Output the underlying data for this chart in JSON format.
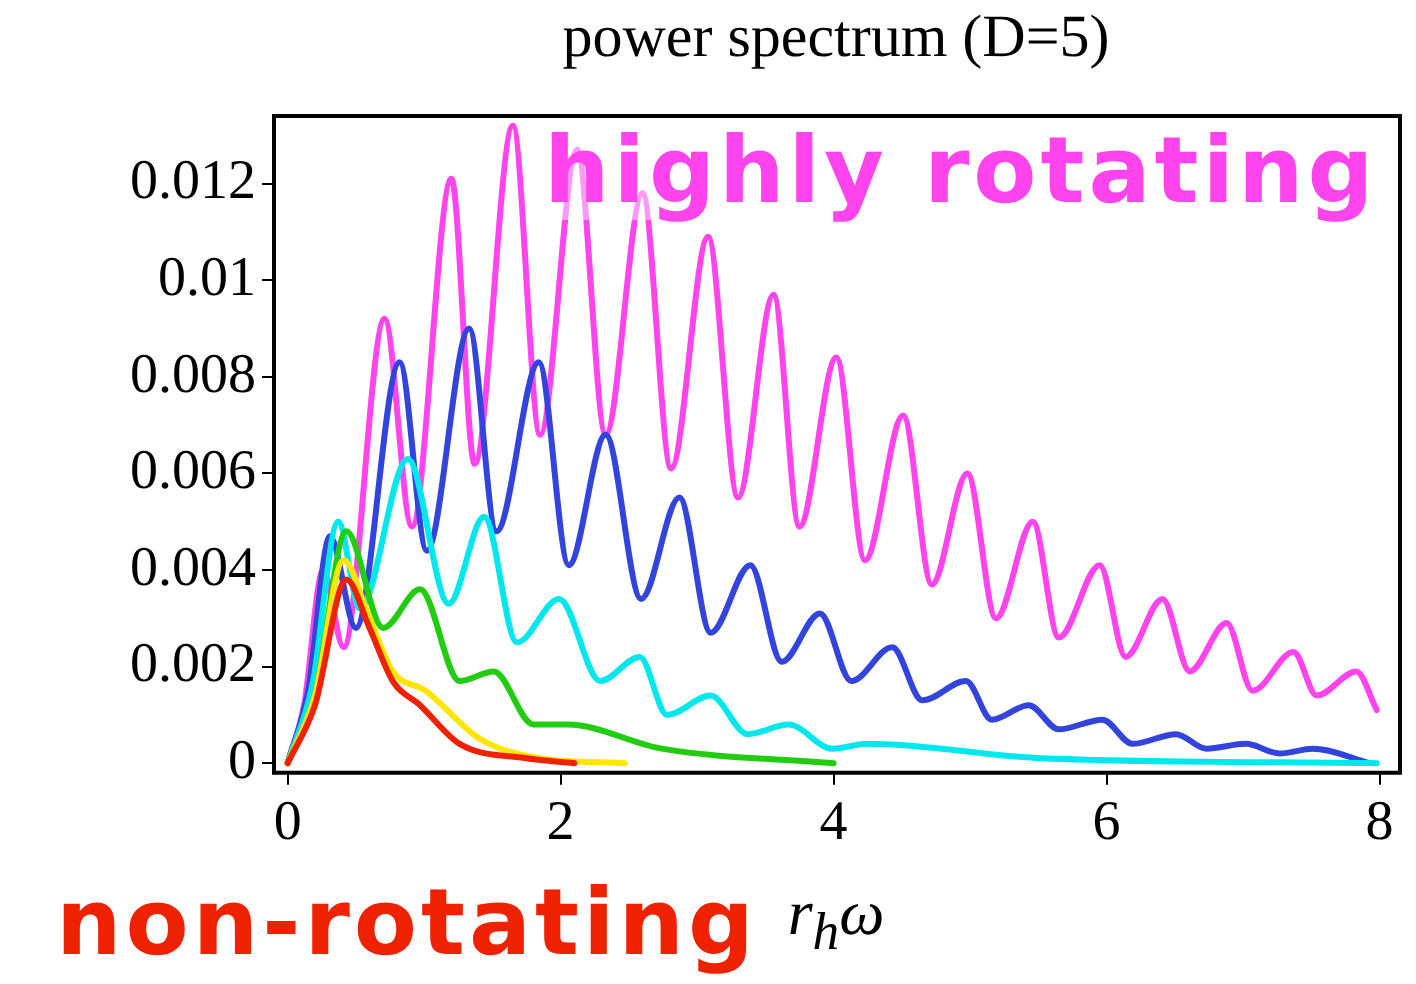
{
  "chart_data": {
    "type": "line",
    "title": "power spectrum (D=5)",
    "xlabel": "r$_{h}$ω",
    "xlim": [
      -0.1,
      8.15
    ],
    "ylim": [
      -0.0002,
      0.0134
    ],
    "xticks": [
      0,
      2,
      4,
      6,
      8
    ],
    "yticks": [
      0,
      0.002,
      0.004,
      0.006,
      0.008,
      0.01,
      0.012
    ],
    "grid": false,
    "legend": false,
    "marker": "none",
    "line_style": "solid",
    "series": [
      {
        "color": "#ee2200",
        "name": "non-rotating",
        "x": [
          0,
          0.2,
          0.43,
          0.6,
          0.77,
          0.97,
          1.26,
          1.75,
          2.1
        ],
        "values": [
          0,
          0.0012,
          0.0038,
          0.0028,
          0.0017,
          0.0012,
          0.0004,
          0.0001,
          0
        ]
      },
      {
        "color": "#ffe600",
        "x": [
          0,
          0.2,
          0.41,
          0.6,
          0.77,
          1.01,
          1.41,
          1.85,
          2.47
        ],
        "values": [
          0,
          0.0014,
          0.0042,
          0.003,
          0.0019,
          0.0015,
          0.0005,
          0.0001,
          0
        ]
      },
      {
        "color": "#22cc11",
        "x": [
          0,
          0.2,
          0.43,
          0.7,
          0.97,
          1.26,
          1.51,
          1.8,
          2.05,
          2.74,
          4.0
        ],
        "values": [
          0,
          0.0014,
          0.0048,
          0.0028,
          0.0036,
          0.0017,
          0.0019,
          0.0008,
          0.0008,
          0.0003,
          0
        ]
      },
      {
        "color": "#00e8ee",
        "x": [
          0,
          0.18,
          0.37,
          0.53,
          0.88,
          1.18,
          1.44,
          1.68,
          1.99,
          2.29,
          2.58,
          2.78,
          3.1,
          3.37,
          3.67,
          3.99,
          4.25,
          5.53,
          7.98
        ],
        "values": [
          0,
          0.0016,
          0.005,
          0.0032,
          0.0063,
          0.0033,
          0.0051,
          0.0025,
          0.0034,
          0.0017,
          0.0022,
          0.001,
          0.0014,
          0.0006,
          0.0008,
          0.0003,
          0.0004,
          0.0001,
          0
        ]
      },
      {
        "color": "#3344dd",
        "x": [
          0,
          0.15,
          0.31,
          0.5,
          0.82,
          1.02,
          1.33,
          1.53,
          1.84,
          2.06,
          2.33,
          2.59,
          2.87,
          3.1,
          3.39,
          3.62,
          3.9,
          4.13,
          4.43,
          4.65,
          4.97,
          5.16,
          5.43,
          5.65,
          5.97,
          6.19,
          6.51,
          6.73,
          7.02,
          7.27,
          7.51,
          7.93
        ],
        "values": [
          0,
          0.0015,
          0.0047,
          0.0028,
          0.0083,
          0.0044,
          0.009,
          0.0048,
          0.0083,
          0.0041,
          0.0068,
          0.0034,
          0.0055,
          0.0027,
          0.0041,
          0.0021,
          0.0031,
          0.0017,
          0.0024,
          0.0013,
          0.0017,
          0.0009,
          0.0012,
          0.0007,
          0.0009,
          0.0004,
          0.0006,
          0.0003,
          0.0004,
          0.0002,
          0.0003,
          0
        ]
      },
      {
        "color": "#ff44ee",
        "name": "highly rotating",
        "x": [
          0,
          0.12,
          0.26,
          0.41,
          0.71,
          0.91,
          1.2,
          1.37,
          1.65,
          1.85,
          2.12,
          2.33,
          2.6,
          2.81,
          3.08,
          3.3,
          3.56,
          3.75,
          4.02,
          4.23,
          4.51,
          4.72,
          4.98,
          5.19,
          5.46,
          5.65,
          5.95,
          6.14,
          6.41,
          6.61,
          6.88,
          7.07,
          7.37,
          7.54,
          7.83,
          7.98
        ],
        "values": [
          0,
          0.0012,
          0.004,
          0.0024,
          0.0092,
          0.0049,
          0.0121,
          0.0062,
          0.0132,
          0.0068,
          0.0127,
          0.0068,
          0.0118,
          0.0061,
          0.0109,
          0.0055,
          0.0097,
          0.0049,
          0.0084,
          0.0042,
          0.0072,
          0.0037,
          0.006,
          0.003,
          0.005,
          0.0026,
          0.0041,
          0.0022,
          0.0034,
          0.0019,
          0.0029,
          0.0015,
          0.0023,
          0.0014,
          0.0019,
          0.0011
        ]
      }
    ]
  }
}
